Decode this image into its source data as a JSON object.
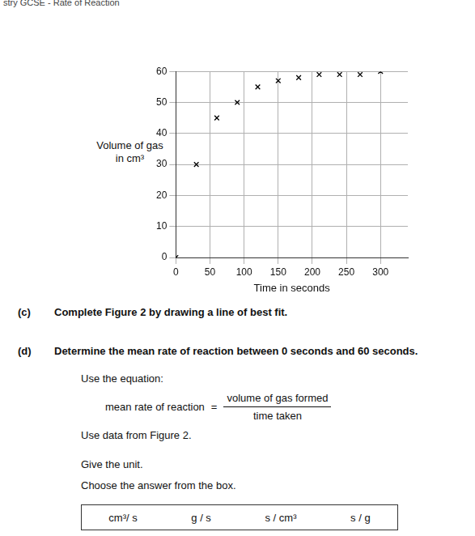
{
  "header": "stry GCSE - Rate of Reaction",
  "chart_data": {
    "type": "scatter",
    "x_label": "Time in seconds",
    "y_label": "Volume of gas in cm³",
    "x": [
      0,
      30,
      60,
      90,
      120,
      150,
      180,
      210,
      240,
      270,
      300
    ],
    "values": [
      0,
      30,
      45,
      50,
      55,
      57,
      58,
      59,
      59,
      59,
      60
    ],
    "color": "#000000",
    "marker": "x",
    "grid": true,
    "xlim": [
      0,
      340
    ],
    "ylim": [
      0,
      60
    ],
    "xticks": [
      0,
      50,
      100,
      150,
      200,
      250,
      300
    ],
    "yticks": [
      0,
      10,
      20,
      30,
      40,
      50,
      60
    ]
  },
  "question_c": {
    "label": "(c)",
    "text": "Complete Figure 2 by drawing a line of best fit."
  },
  "question_d": {
    "label": "(d)",
    "text": "Determine the mean rate of reaction between 0 seconds and 60 seconds.",
    "intro": "Use the equation:",
    "equation": {
      "lhs": "mean rate of reaction",
      "equals": "=",
      "numerator": "volume of gas formed",
      "denominator": "time taken"
    },
    "after": [
      "Use data from Figure 2.",
      "Give the unit.",
      "Choose the answer from the box."
    ],
    "units": [
      "cm³/ s",
      "g / s",
      "s / cm³",
      "s / g"
    ]
  }
}
